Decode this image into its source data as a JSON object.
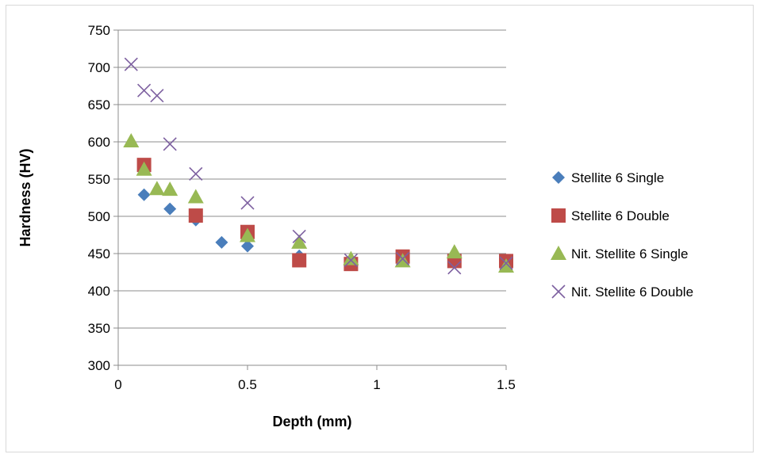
{
  "chart_data": {
    "type": "scatter",
    "title": "",
    "xlabel": "Depth (mm)",
    "ylabel": "Hardness (HV)",
    "xlim": [
      0,
      1.5
    ],
    "ylim": [
      300,
      750
    ],
    "xticks": [
      0,
      0.5,
      1,
      1.5
    ],
    "yticks": [
      300,
      350,
      400,
      450,
      500,
      550,
      600,
      650,
      700,
      750
    ],
    "grid": "horizontal",
    "legend_position": "right",
    "series": [
      {
        "name": "Stellite 6 Single",
        "marker": "diamond",
        "color": "#4a7ebb",
        "points": [
          [
            0.1,
            529
          ],
          [
            0.2,
            510
          ],
          [
            0.3,
            495
          ],
          [
            0.4,
            465
          ],
          [
            0.5,
            460
          ],
          [
            0.7,
            447
          ],
          [
            0.9,
            437
          ],
          [
            1.1,
            444
          ],
          [
            1.3,
            440
          ],
          [
            1.5,
            438
          ]
        ]
      },
      {
        "name": "Stellite 6 Double",
        "marker": "square",
        "color": "#be4b48",
        "points": [
          [
            0.1,
            569
          ],
          [
            0.3,
            501
          ],
          [
            0.5,
            479
          ],
          [
            0.7,
            441
          ],
          [
            0.9,
            436
          ],
          [
            1.1,
            446
          ],
          [
            1.3,
            440
          ],
          [
            1.5,
            440
          ]
        ]
      },
      {
        "name": "Nit. Stellite 6 Single",
        "marker": "triangle",
        "color": "#98b954",
        "points": [
          [
            0.05,
            601
          ],
          [
            0.1,
            563
          ],
          [
            0.15,
            537
          ],
          [
            0.2,
            536
          ],
          [
            0.3,
            526
          ],
          [
            0.5,
            474
          ],
          [
            0.7,
            465
          ],
          [
            0.9,
            443
          ],
          [
            1.1,
            440
          ],
          [
            1.3,
            452
          ],
          [
            1.5,
            433
          ]
        ]
      },
      {
        "name": "Nit. Stellite 6 Double",
        "marker": "x",
        "color": "#7d60a0",
        "points": [
          [
            0.05,
            704
          ],
          [
            0.1,
            669
          ],
          [
            0.15,
            662
          ],
          [
            0.2,
            597
          ],
          [
            0.3,
            557
          ],
          [
            0.5,
            518
          ],
          [
            0.7,
            473
          ],
          [
            0.9,
            441
          ],
          [
            1.1,
            443
          ],
          [
            1.3,
            431
          ],
          [
            1.5,
            437
          ]
        ]
      }
    ]
  }
}
